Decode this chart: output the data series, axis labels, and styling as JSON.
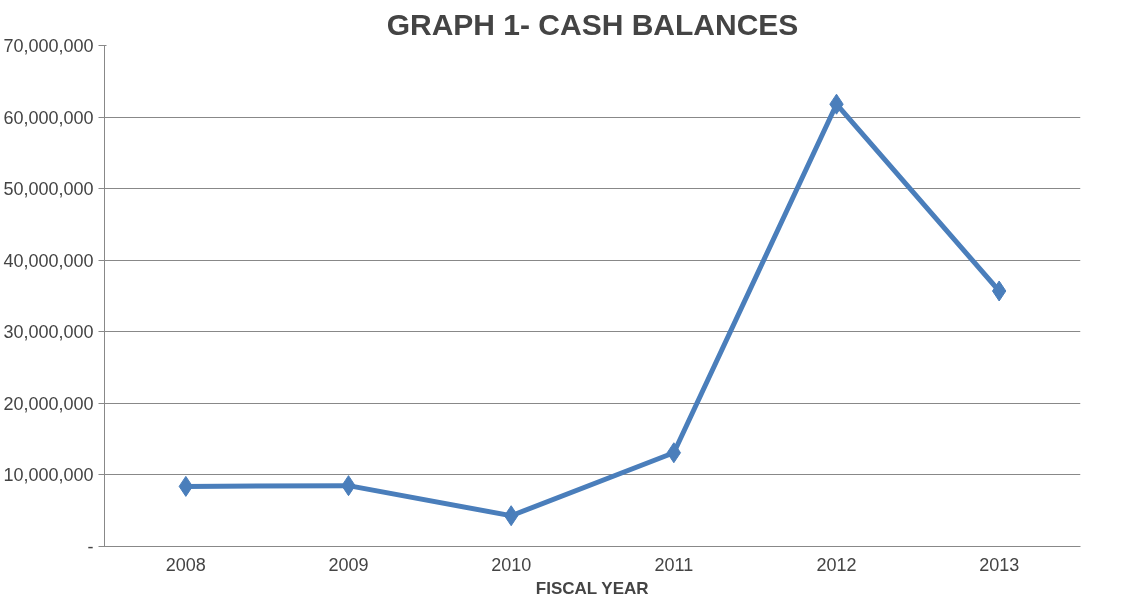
{
  "chart_data": {
    "type": "line",
    "title": "GRAPH 1- CASH BALANCES",
    "xlabel": "FISCAL YEAR",
    "categories": [
      "2008",
      "2009",
      "2010",
      "2011",
      "2012",
      "2013"
    ],
    "series": [
      {
        "color": "#4a7ebb",
        "values": [
          8400000,
          8500000,
          4300000,
          13100000,
          61800000,
          35700000
        ]
      }
    ],
    "ylim": [
      0,
      70000000
    ],
    "yticks": [
      {
        "value": 0,
        "label": "-"
      },
      {
        "value": 10000000,
        "label": "10,000,000"
      },
      {
        "value": 20000000,
        "label": "20,000,000"
      },
      {
        "value": 30000000,
        "label": "30,000,000"
      },
      {
        "value": 40000000,
        "label": "40,000,000"
      },
      {
        "value": 50000000,
        "label": "50,000,000"
      },
      {
        "value": 60000000,
        "label": "60,000,000"
      },
      {
        "value": 70000000,
        "label": "70,000,000"
      }
    ],
    "grid": "y",
    "marker": "diamond",
    "line_style": "solid"
  }
}
